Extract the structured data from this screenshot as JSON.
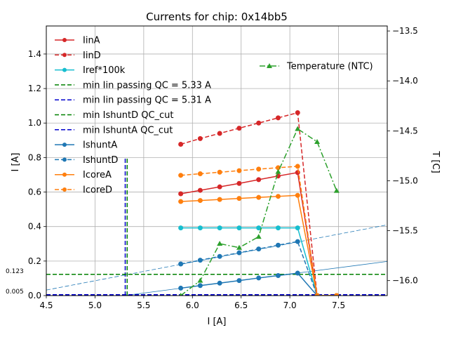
{
  "chart_data": {
    "type": "line",
    "title": "Currents for chip: 0x14bb5",
    "xlabel": "I [A]",
    "ylabel": "I [A]",
    "y2label": "T [C]",
    "xlim": [
      4.5,
      8.0
    ],
    "ylim": [
      0.0,
      1.5625
    ],
    "y2lim": [
      -16.15,
      -13.45
    ],
    "xticks": [
      4.5,
      5.0,
      5.5,
      6.0,
      6.5,
      7.0,
      7.5
    ],
    "xtick_labels": [
      "4.5",
      "5.0",
      "5.5",
      "6.0",
      "6.5",
      "7.0",
      "7.5"
    ],
    "yticks": [
      0.0,
      0.2,
      0.4,
      0.6,
      0.8,
      1.0,
      1.2,
      1.4
    ],
    "ytick_labels": [
      "0.0",
      "0.2",
      "0.4",
      "0.6",
      "0.8",
      "1.0",
      "1.2",
      "1.4"
    ],
    "y2ticks": [
      -16.0,
      -15.5,
      -15.0,
      -14.5,
      -14.0,
      -13.5
    ],
    "y2tick_labels": [
      "−16.0",
      "−15.5",
      "−15.0",
      "−14.5",
      "−14.0",
      "−13.5"
    ],
    "grid": true,
    "legend_position": "upper-left",
    "legend2_position": "upper-right",
    "annotations": [
      {
        "text": "0.123",
        "y": 0.123
      },
      {
        "text": "0.005",
        "y": 0.005
      }
    ],
    "series": [
      {
        "name": "IinA",
        "color": "#d62728",
        "style": "solid",
        "marker": "circle",
        "x": [
          5.88,
          6.08,
          6.28,
          6.48,
          6.68,
          6.88,
          7.08,
          7.28,
          7.48
        ],
        "y": [
          0.59,
          0.61,
          0.63,
          0.65,
          0.672,
          0.693,
          0.713,
          0.0,
          0.0
        ]
      },
      {
        "name": "IinD",
        "color": "#d62728",
        "style": "dashed",
        "marker": "circle",
        "x": [
          5.88,
          6.08,
          6.28,
          6.48,
          6.68,
          6.88,
          7.08,
          7.28,
          7.48
        ],
        "y": [
          0.877,
          0.91,
          0.94,
          0.97,
          1.0,
          1.03,
          1.06,
          0.0,
          0.0
        ]
      },
      {
        "name": "Iref*100k",
        "color": "#17becf",
        "style": "solid",
        "marker": "circle",
        "x": [
          5.88,
          6.08,
          6.28,
          6.48,
          6.68,
          6.88,
          7.08,
          7.28,
          7.48
        ],
        "y": [
          0.392,
          0.392,
          0.392,
          0.392,
          0.392,
          0.392,
          0.392,
          0.0,
          0.0
        ]
      },
      {
        "name": "min Iin passing QC = 5.33 A",
        "color": "#008000",
        "style": "dashed",
        "marker": "none",
        "kind": "vline",
        "x": 5.33,
        "y_range": [
          0.0,
          0.8
        ]
      },
      {
        "name": "min Iin passing QC = 5.31 A",
        "color": "#0000cd",
        "style": "dashed",
        "marker": "none",
        "kind": "vline",
        "x": 5.31,
        "y_range": [
          0.0,
          0.8
        ]
      },
      {
        "name": "min IshuntD QC_cut",
        "color": "#008000",
        "style": "dashed",
        "marker": "none",
        "kind": "hline",
        "y": 0.123
      },
      {
        "name": "min IshuntA QC_cut",
        "color": "#0000cd",
        "style": "dashed",
        "marker": "none",
        "kind": "hline",
        "y": 0.005
      },
      {
        "name": "IshuntA",
        "color": "#1f77b4",
        "style": "solid",
        "marker": "circle",
        "x": [
          5.88,
          6.08,
          6.28,
          6.48,
          6.68,
          6.88,
          7.08,
          7.28,
          7.48
        ],
        "y": [
          0.043,
          0.058,
          0.072,
          0.087,
          0.102,
          0.116,
          0.13,
          0.0,
          0.0
        ]
      },
      {
        "name": "IshuntD",
        "color": "#1f77b4",
        "style": "dashed",
        "marker": "circle",
        "x": [
          5.88,
          6.08,
          6.28,
          6.48,
          6.68,
          6.88,
          7.08,
          7.28,
          7.48
        ],
        "y": [
          0.183,
          0.205,
          0.227,
          0.248,
          0.27,
          0.292,
          0.313,
          0.0,
          0.0
        ]
      },
      {
        "name": "IcoreA",
        "color": "#ff7f0e",
        "style": "solid",
        "marker": "circle",
        "x": [
          5.88,
          6.08,
          6.28,
          6.48,
          6.68,
          6.88,
          7.08,
          7.28,
          7.48
        ],
        "y": [
          0.545,
          0.551,
          0.557,
          0.563,
          0.569,
          0.575,
          0.581,
          0.0,
          0.0
        ]
      },
      {
        "name": "IcoreD",
        "color": "#ff7f0e",
        "style": "dashed",
        "marker": "circle",
        "x": [
          5.88,
          6.08,
          6.28,
          6.48,
          6.68,
          6.88,
          7.08,
          7.28,
          7.48
        ],
        "y": [
          0.697,
          0.706,
          0.715,
          0.724,
          0.733,
          0.741,
          0.749,
          0.0,
          0.0
        ]
      }
    ],
    "fit_lines": [
      {
        "name": "IshuntD fit",
        "color": "#1f77b4",
        "style": "dashed",
        "x": [
          4.5,
          8.0
        ],
        "y": [
          0.032,
          0.41
        ]
      },
      {
        "name": "IshuntA fit",
        "color": "#1f77b4",
        "style": "solid",
        "x": [
          5.3,
          8.0
        ],
        "y": [
          0.0,
          0.198
        ]
      }
    ],
    "series2": [
      {
        "name": "Temperature (NTC)",
        "color": "#2ca02c",
        "style": "dashdot",
        "marker": "triangle",
        "x": [
          5.88,
          6.08,
          6.28,
          6.48,
          6.68,
          6.88,
          7.08,
          7.28,
          7.48
        ],
        "y": [
          -16.15,
          -16.0,
          -15.63,
          -15.67,
          -15.56,
          -14.91,
          -14.48,
          -14.61,
          -15.1
        ]
      }
    ]
  }
}
